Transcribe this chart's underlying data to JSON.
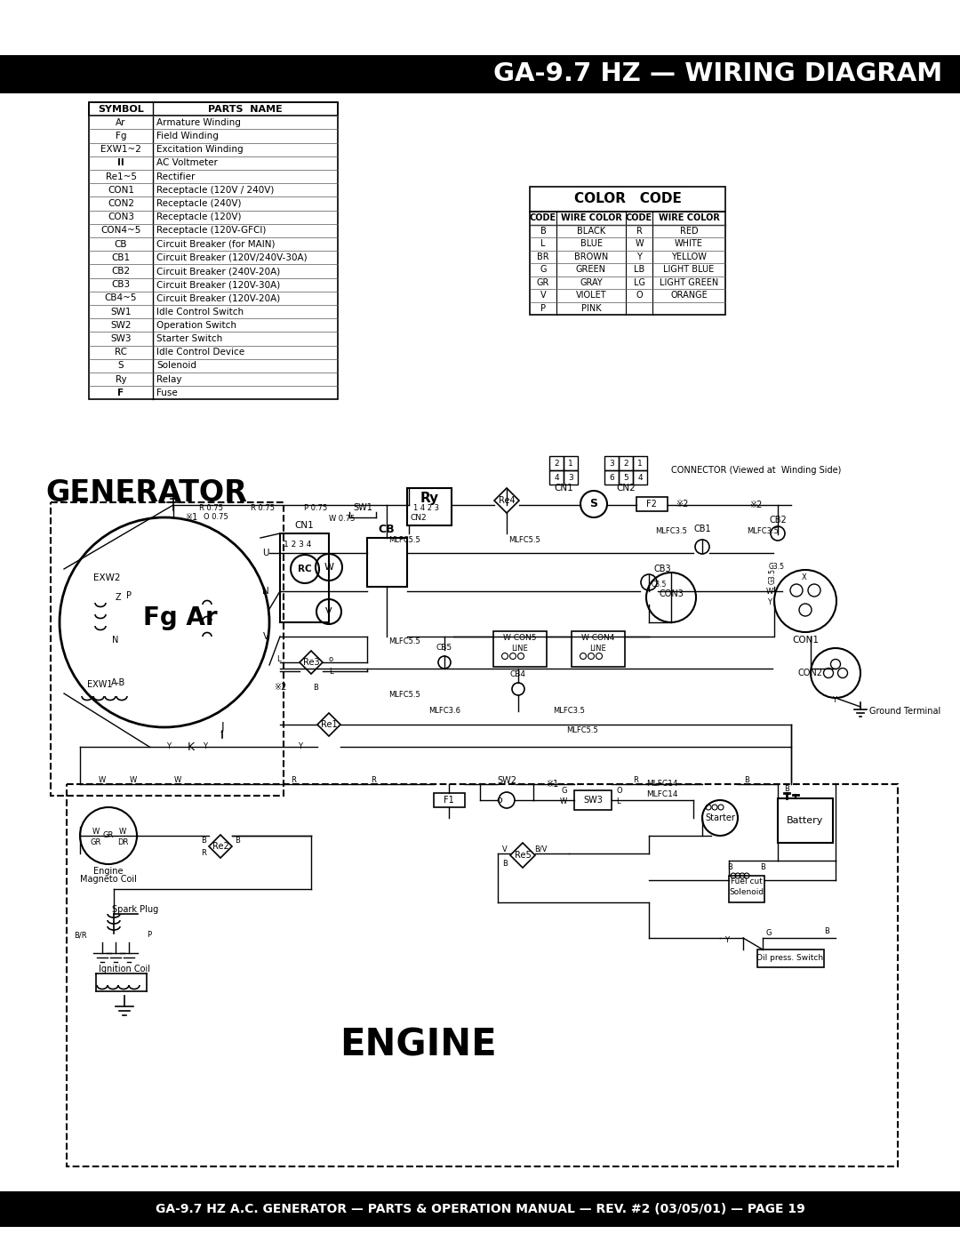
{
  "title": "GA-9.7 HZ — WIRING DIAGRAM",
  "footer": "GA-9.7 HZ A.C. GENERATOR — PARTS & OPERATION MANUAL — REV. #2 (03/05/01) — PAGE 19",
  "header_bg": "#000000",
  "header_text_color": "#ffffff",
  "footer_bg": "#000000",
  "footer_text_color": "#ffffff",
  "page_bg": "#ffffff",
  "symbol_table_title": [
    "SYMBOL",
    "PARTS NAME"
  ],
  "symbol_table_rows": [
    [
      "Ar",
      "Armature Winding"
    ],
    [
      "Fg",
      "Field Winding"
    ],
    [
      "EXW1~2",
      "Excitation Winding"
    ],
    [
      "II",
      "AC Voltmeter"
    ],
    [
      "Re1~5",
      "Rectifier"
    ],
    [
      "CON1",
      "Receptacle (120V / 240V)"
    ],
    [
      "CON2",
      "Receptacle (240V)"
    ],
    [
      "CON3",
      "Receptacle (120V)"
    ],
    [
      "CON4~5",
      "Receptacle (120V-GFCI)"
    ],
    [
      "CB",
      "Circuit Breaker (for MAIN)"
    ],
    [
      "CB1",
      "Circuit Breaker (120V/240V-30A)"
    ],
    [
      "CB2",
      "Circuit Breaker (240V-20A)"
    ],
    [
      "CB3",
      "Circuit Breaker (120V-30A)"
    ],
    [
      "CB4~5",
      "Circuit Breaker (120V-20A)"
    ],
    [
      "SW1",
      "Idle Control Switch"
    ],
    [
      "SW2",
      "Operation Switch"
    ],
    [
      "SW3",
      "Starter Switch"
    ],
    [
      "RC",
      "Idle Control Device"
    ],
    [
      "S",
      "Solenoid"
    ],
    [
      "Ry",
      "Relay"
    ],
    [
      "F",
      "Fuse"
    ]
  ],
  "color_table_title": "COLOR   CODE",
  "color_table_headers": [
    "CODE",
    "WIRE COLOR",
    "CODE",
    "WIRE COLOR"
  ],
  "color_table_rows": [
    [
      "B",
      "BLACK",
      "R",
      "RED"
    ],
    [
      "L",
      "BLUE",
      "W",
      "WHITE"
    ],
    [
      "BR",
      "BROWN",
      "Y",
      "YELLOW"
    ],
    [
      "G",
      "GREEN",
      "LB",
      "LIGHT BLUE"
    ],
    [
      "GR",
      "GRAY",
      "LG",
      "LIGHT GREEN"
    ],
    [
      "V",
      "VIOLET",
      "O",
      "ORANGE"
    ],
    [
      "P",
      "PINK",
      "",
      ""
    ]
  ],
  "connector_note": "CONNECTOR (Viewed at  Winding Side)",
  "line_color": "#000000",
  "lw": 1.0
}
